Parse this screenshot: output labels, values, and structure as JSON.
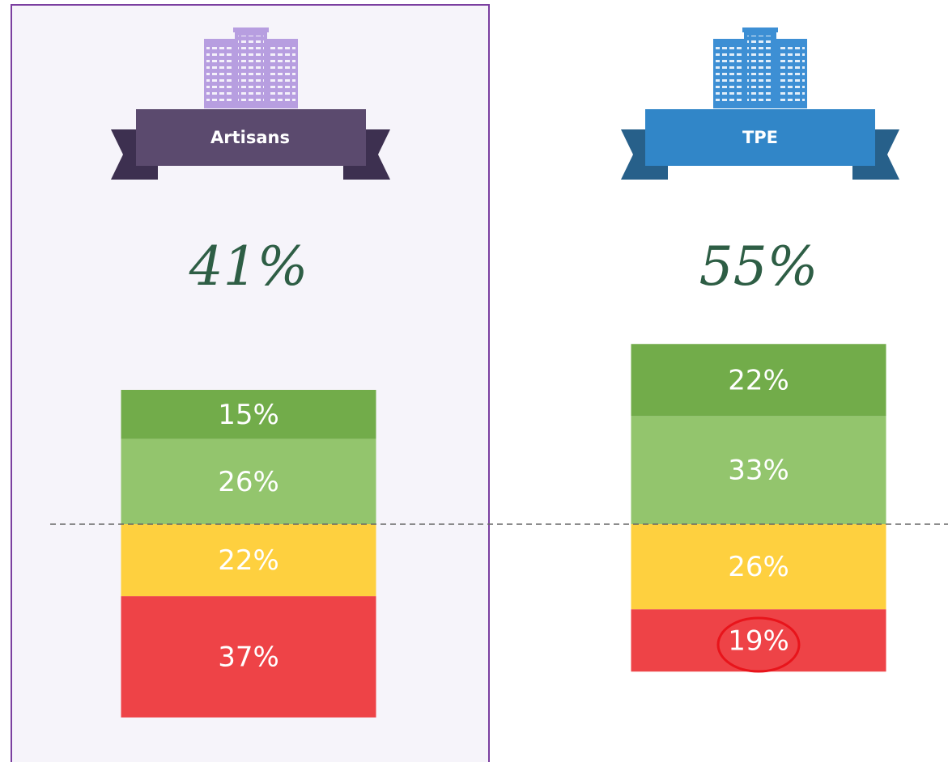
{
  "chart_data": {
    "type": "bar",
    "stacked": true,
    "categories": [
      "Artisans",
      "TPE"
    ],
    "annotations": [
      "41%",
      "55%"
    ],
    "series": [
      {
        "color": "#72ac4a",
        "values": [
          15,
          22
        ],
        "value_labels": [
          "15%",
          "22%"
        ]
      },
      {
        "color": "#93c56d",
        "values": [
          26,
          33
        ],
        "value_labels": [
          "26%",
          "33%"
        ]
      },
      {
        "color": "#fed03f",
        "values": [
          -22,
          -26
        ],
        "value_labels": [
          "22%",
          "26%"
        ]
      },
      {
        "color": "#ee4347",
        "values": [
          -37,
          -19
        ],
        "value_labels": [
          "37%",
          "19%"
        ]
      }
    ]
  }
}
